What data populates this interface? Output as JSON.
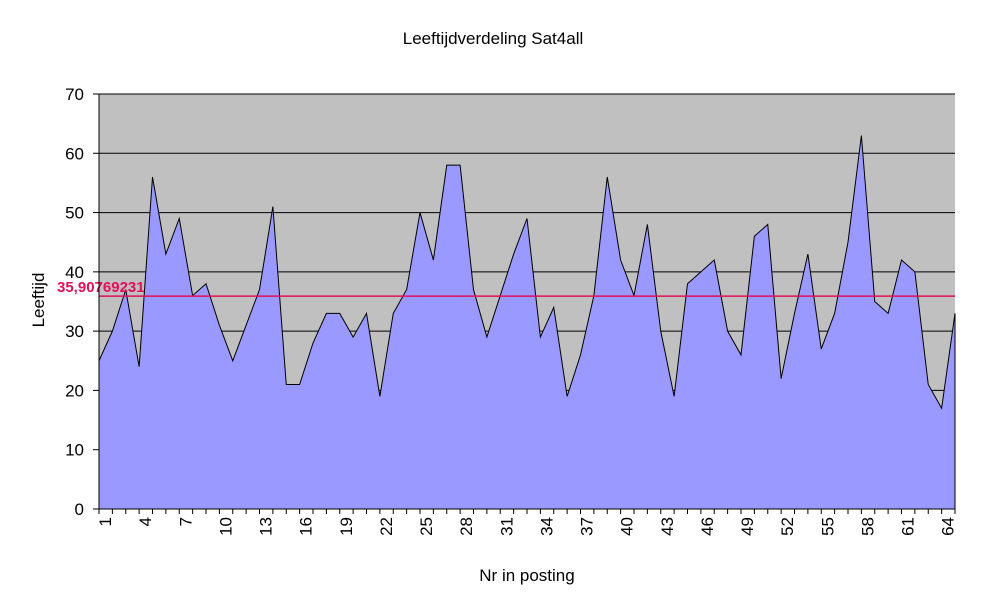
{
  "chart_data": {
    "type": "area",
    "title": "Leeftijdverdeling Sat4all",
    "xlabel": "Nr in posting",
    "ylabel": "Leeftijd",
    "x": [
      1,
      2,
      3,
      4,
      5,
      6,
      7,
      8,
      9,
      10,
      11,
      12,
      13,
      14,
      15,
      16,
      17,
      18,
      19,
      20,
      21,
      22,
      23,
      24,
      25,
      26,
      27,
      28,
      29,
      30,
      31,
      32,
      33,
      34,
      35,
      36,
      37,
      38,
      39,
      40,
      41,
      42,
      43,
      44,
      45,
      46,
      47,
      48,
      49,
      50,
      51,
      52,
      53,
      54,
      55,
      56,
      57,
      58,
      59,
      60,
      61,
      62,
      63,
      64,
      65
    ],
    "x_tick_labels": [
      "1",
      "4",
      "7",
      "10",
      "13",
      "16",
      "19",
      "22",
      "25",
      "28",
      "31",
      "34",
      "37",
      "40",
      "43",
      "46",
      "49",
      "52",
      "55",
      "58",
      "61",
      "64"
    ],
    "series": [
      {
        "values": [
          25,
          30,
          37,
          24,
          56,
          43,
          49,
          36,
          38,
          31,
          25,
          31,
          37,
          51,
          21,
          21,
          28,
          33,
          33,
          29,
          33,
          19,
          33,
          37,
          50,
          42,
          58,
          58,
          37,
          29,
          36,
          43,
          49,
          29,
          34,
          19,
          26,
          36,
          56,
          42,
          36,
          48,
          30,
          19,
          38,
          40,
          42,
          30,
          26,
          46,
          48,
          22,
          33,
          43,
          27,
          33,
          45,
          63,
          35,
          33,
          42,
          40,
          21,
          17,
          33
        ]
      }
    ],
    "ylim": [
      0,
      70
    ],
    "y_ticks": [
      "0",
      "10",
      "20",
      "30",
      "40",
      "50",
      "60",
      "70"
    ],
    "reference_line": {
      "value": 35.90769231,
      "label": "35,90769231",
      "color": "#e0105a"
    },
    "colors": {
      "plot_background": "#c0c0c0",
      "area_fill": "#9999ff",
      "area_stroke": "#000000",
      "gridline": "#000000"
    },
    "grid": true,
    "legend": "none"
  }
}
